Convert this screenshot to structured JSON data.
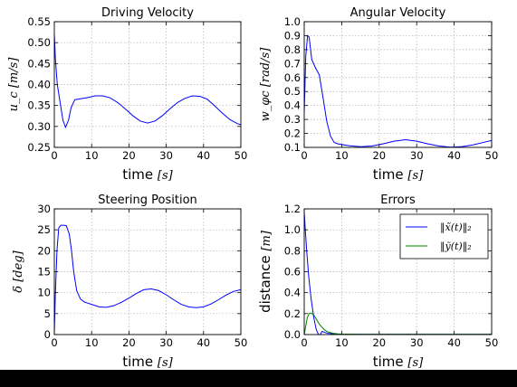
{
  "figure": {
    "background": "#ffffff",
    "outer": "#000000"
  },
  "chart_data": [
    {
      "id": "driving",
      "type": "line",
      "title": "Driving Velocity",
      "xlabel": "time",
      "xlabel_unit": "[s]",
      "ylabel_sym": "u_c",
      "ylabel_unit": "[m/s]",
      "xlim": [
        0,
        50
      ],
      "ylim": [
        0.25,
        0.55
      ],
      "xticks": [
        "0",
        "10",
        "20",
        "30",
        "40",
        "50"
      ],
      "yticks": [
        "0.25",
        "0.30",
        "0.35",
        "0.40",
        "0.45",
        "0.50",
        "0.55"
      ],
      "grid": true,
      "series": [
        {
          "color": "#0000ff",
          "x": [
            0,
            0.3,
            0.8,
            1.5,
            2.3,
            3.0,
            3.8,
            4.5,
            5.5,
            7,
            9,
            11,
            13,
            15,
            17,
            19,
            21,
            23,
            25,
            27,
            29,
            31,
            33,
            35,
            37,
            39,
            41,
            43,
            45,
            47,
            49,
            50
          ],
          "y": [
            0.52,
            0.46,
            0.4,
            0.36,
            0.315,
            0.298,
            0.315,
            0.345,
            0.364,
            0.366,
            0.369,
            0.373,
            0.373,
            0.368,
            0.357,
            0.342,
            0.326,
            0.313,
            0.308,
            0.313,
            0.326,
            0.342,
            0.357,
            0.367,
            0.373,
            0.372,
            0.365,
            0.349,
            0.332,
            0.317,
            0.307,
            0.304
          ]
        }
      ]
    },
    {
      "id": "angular",
      "type": "line",
      "title": "Angular Velocity",
      "xlabel": "time",
      "xlabel_unit": "[s]",
      "ylabel_sym": "w_φc",
      "ylabel_unit": "[rad/s]",
      "xlim": [
        0,
        50
      ],
      "ylim": [
        0.1,
        1.0
      ],
      "xticks": [
        "0",
        "10",
        "20",
        "30",
        "40",
        "50"
      ],
      "yticks": [
        "0.1",
        "0.2",
        "0.3",
        "0.4",
        "0.5",
        "0.6",
        "0.7",
        "0.8",
        "0.9",
        "1.0"
      ],
      "grid": true,
      "series": [
        {
          "color": "#0000ff",
          "x": [
            0,
            0.4,
            0.9,
            1.3,
            2,
            3,
            4,
            5,
            6,
            7,
            8,
            9,
            10,
            12,
            15,
            18,
            21,
            24,
            27,
            30,
            33,
            36,
            39,
            42,
            45,
            48,
            50
          ],
          "y": [
            0.35,
            0.75,
            0.9,
            0.89,
            0.73,
            0.67,
            0.62,
            0.46,
            0.29,
            0.18,
            0.135,
            0.125,
            0.12,
            0.112,
            0.105,
            0.11,
            0.125,
            0.145,
            0.155,
            0.145,
            0.125,
            0.11,
            0.102,
            0.105,
            0.118,
            0.137,
            0.15
          ]
        }
      ]
    },
    {
      "id": "steering",
      "type": "line",
      "title": "Steering Position",
      "xlabel": "time",
      "xlabel_unit": "[s]",
      "ylabel_sym": "δ",
      "ylabel_unit": "[deg]",
      "xlim": [
        0,
        50
      ],
      "ylim": [
        0,
        30
      ],
      "xticks": [
        "0",
        "10",
        "20",
        "30",
        "40",
        "50"
      ],
      "yticks": [
        "0",
        "5",
        "10",
        "15",
        "20",
        "25",
        "30"
      ],
      "grid": true,
      "series": [
        {
          "color": "#0000ff",
          "x": [
            0,
            0.3,
            0.7,
            1.2,
            1.8,
            2.5,
            3.2,
            4.0,
            4.6,
            5.2,
            6.0,
            7.0,
            8,
            9,
            10,
            12,
            14,
            16,
            18,
            20,
            22,
            24,
            26,
            28,
            30,
            32,
            34,
            36,
            38,
            40,
            42,
            44,
            46,
            48,
            50
          ],
          "y": [
            0.5,
            10,
            20,
            25.5,
            26.1,
            26.1,
            26.0,
            24,
            20,
            15,
            10.5,
            8.5,
            7.8,
            7.5,
            7.2,
            6.6,
            6.5,
            6.9,
            7.7,
            8.7,
            9.8,
            10.7,
            10.9,
            10.5,
            9.5,
            8.3,
            7.2,
            6.6,
            6.4,
            6.6,
            7.3,
            8.3,
            9.4,
            10.3,
            10.7
          ]
        }
      ]
    },
    {
      "id": "errors",
      "type": "line",
      "title": "Errors",
      "xlabel": "time",
      "xlabel_unit": "[s]",
      "ylabel_sym": "distance",
      "ylabel_unit": "[m]",
      "xlim": [
        0,
        50
      ],
      "ylim": [
        0,
        1.2
      ],
      "xticks": [
        "0",
        "10",
        "20",
        "30",
        "40",
        "50"
      ],
      "yticks": [
        "0.0",
        "0.2",
        "0.4",
        "0.6",
        "0.8",
        "1.0",
        "1.2"
      ],
      "grid": true,
      "legend": "top-right",
      "series": [
        {
          "name": "‖x̃(t)‖₂",
          "color": "#0000ff",
          "x": [
            0,
            0.3,
            0.7,
            1.2,
            1.8,
            2.5,
            3.2,
            3.8,
            4.2,
            4.8,
            5.5,
            6.5,
            8,
            10,
            15,
            20,
            30,
            40,
            50
          ],
          "y": [
            1.17,
            1.0,
            0.78,
            0.55,
            0.35,
            0.17,
            0.05,
            0.0,
            0.0,
            0.03,
            0.02,
            0.01,
            0.005,
            0.003,
            0.002,
            0.002,
            0.002,
            0.002,
            0.002
          ]
        },
        {
          "name": "‖ỹ(t)‖₂",
          "color": "#008000",
          "x": [
            0,
            0.4,
            0.8,
            1.3,
            1.8,
            2.5,
            3.2,
            4.0,
            5.0,
            6.0,
            7.0,
            8.0,
            9.0,
            10,
            15,
            20,
            30,
            40,
            50
          ],
          "y": [
            0.0,
            0.08,
            0.16,
            0.2,
            0.205,
            0.19,
            0.15,
            0.1,
            0.06,
            0.03,
            0.018,
            0.01,
            0.006,
            0.004,
            0.002,
            0.002,
            0.002,
            0.002,
            0.002
          ]
        }
      ]
    }
  ]
}
